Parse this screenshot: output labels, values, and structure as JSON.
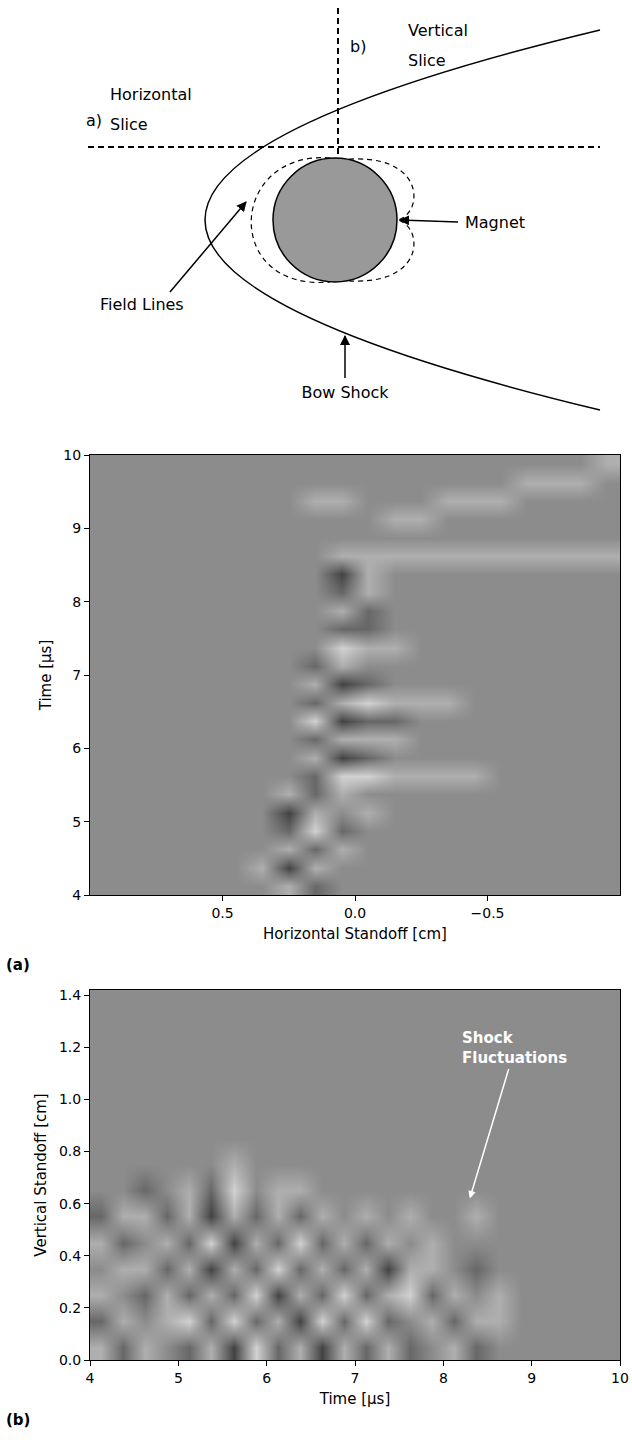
{
  "diagram": {
    "slice_a": "a)",
    "horizontal_slice": "Horizontal Slice",
    "slice_b": "b)",
    "vertical_slice": "Vertical Slice",
    "field_lines": "Field Lines",
    "magnet": "Magnet",
    "bow_shock": "Bow Shock"
  },
  "chart_data": [
    {
      "type": "heatmap",
      "panel_label": "(a)",
      "xlabel": "Horizontal Standoff [cm]",
      "ylabel": "Time [μs]",
      "x": [
        0.95,
        0.85,
        0.75,
        0.65,
        0.55,
        0.45,
        0.35,
        0.25,
        0.15,
        0.05,
        -0.05,
        -0.15,
        -0.25,
        -0.35,
        -0.45,
        -0.55,
        -0.65,
        -0.75,
        -0.85,
        -0.95
      ],
      "y": [
        4.125,
        4.375,
        4.625,
        4.875,
        5.125,
        5.375,
        5.625,
        5.875,
        6.125,
        6.375,
        6.625,
        6.875,
        7.125,
        7.375,
        7.625,
        7.875,
        8.125,
        8.375,
        8.625,
        8.875,
        9.125,
        9.375,
        9.625,
        9.875
      ],
      "cells": [
        [
          0,
          0,
          0,
          0,
          0,
          0,
          0,
          1,
          -1,
          0,
          0,
          0,
          0,
          0,
          0,
          0,
          0,
          0,
          0,
          0
        ],
        [
          0,
          0,
          0,
          0,
          0,
          0,
          1,
          -2,
          1,
          0,
          0,
          0,
          0,
          0,
          0,
          0,
          0,
          0,
          0,
          0
        ],
        [
          0,
          0,
          0,
          0,
          0,
          0,
          0,
          1,
          -1,
          1,
          0,
          0,
          0,
          0,
          0,
          0,
          0,
          0,
          0,
          0
        ],
        [
          0,
          0,
          0,
          0,
          0,
          0,
          0,
          -1,
          2,
          -1,
          0,
          0,
          0,
          0,
          0,
          0,
          0,
          0,
          0,
          0
        ],
        [
          0,
          0,
          0,
          0,
          0,
          0,
          0,
          -2,
          1,
          0,
          1,
          0,
          0,
          0,
          0,
          0,
          0,
          0,
          0,
          0
        ],
        [
          0,
          0,
          0,
          0,
          0,
          0,
          0,
          1,
          -1,
          1,
          0,
          0,
          0,
          0,
          0,
          0,
          0,
          0,
          0,
          0
        ],
        [
          0,
          0,
          0,
          0,
          0,
          0,
          0,
          0,
          -1,
          2,
          2,
          1,
          1,
          1,
          1,
          0,
          0,
          0,
          0,
          0
        ],
        [
          0,
          0,
          0,
          0,
          0,
          0,
          0,
          0,
          1,
          -2,
          -1,
          0,
          0,
          0,
          0,
          0,
          0,
          0,
          0,
          0
        ],
        [
          0,
          0,
          0,
          0,
          0,
          0,
          0,
          0,
          -1,
          1,
          1,
          1,
          0,
          0,
          0,
          0,
          0,
          0,
          0,
          0
        ],
        [
          0,
          0,
          0,
          0,
          0,
          0,
          0,
          0,
          2,
          -2,
          -1,
          -1,
          0,
          0,
          0,
          0,
          0,
          0,
          0,
          0
        ],
        [
          0,
          0,
          0,
          0,
          0,
          0,
          0,
          0,
          -1,
          1,
          2,
          1,
          1,
          1,
          0,
          0,
          0,
          0,
          0,
          0
        ],
        [
          0,
          0,
          0,
          0,
          0,
          0,
          0,
          0,
          1,
          -2,
          -1,
          0,
          0,
          0,
          0,
          0,
          0,
          0,
          0,
          0
        ],
        [
          0,
          0,
          0,
          0,
          0,
          0,
          0,
          0,
          -1,
          1,
          0,
          0,
          0,
          0,
          0,
          0,
          0,
          0,
          0,
          0
        ],
        [
          0,
          0,
          0,
          0,
          0,
          0,
          0,
          0,
          0,
          2,
          1,
          1,
          0,
          0,
          0,
          0,
          0,
          0,
          0,
          0
        ],
        [
          0,
          0,
          0,
          0,
          0,
          0,
          0,
          0,
          0,
          -1,
          -1,
          0,
          0,
          0,
          0,
          0,
          0,
          0,
          0,
          0
        ],
        [
          0,
          0,
          0,
          0,
          0,
          0,
          0,
          0,
          0,
          1,
          -1,
          0,
          0,
          0,
          0,
          0,
          0,
          0,
          0,
          0
        ],
        [
          0,
          0,
          0,
          0,
          0,
          0,
          0,
          0,
          0,
          -1,
          1,
          0,
          0,
          0,
          0,
          0,
          0,
          0,
          0,
          0
        ],
        [
          0,
          0,
          0,
          0,
          0,
          0,
          0,
          0,
          0,
          -2,
          1,
          0,
          0,
          0,
          0,
          0,
          0,
          0,
          0,
          0
        ],
        [
          0,
          0,
          0,
          0,
          0,
          0,
          0,
          0,
          0,
          1,
          1,
          1,
          1,
          1,
          1,
          1,
          1,
          1,
          1,
          1
        ],
        [
          0,
          0,
          0,
          0,
          0,
          0,
          0,
          0,
          0,
          0,
          0,
          0,
          0,
          0,
          0,
          0,
          0,
          0,
          0,
          0
        ],
        [
          0,
          0,
          0,
          0,
          0,
          0,
          0,
          0,
          0,
          0,
          0,
          1,
          1,
          0,
          0,
          0,
          0,
          0,
          0,
          0
        ],
        [
          0,
          0,
          0,
          0,
          0,
          0,
          0,
          0,
          1,
          1,
          0,
          0,
          0,
          1,
          1,
          1,
          0,
          0,
          0,
          0
        ],
        [
          0,
          0,
          0,
          0,
          0,
          0,
          0,
          0,
          0,
          0,
          0,
          0,
          0,
          0,
          0,
          0,
          1,
          1,
          1,
          0
        ],
        [
          0,
          0,
          0,
          0,
          0,
          0,
          0,
          0,
          0,
          0,
          0,
          0,
          0,
          0,
          0,
          0,
          0,
          0,
          0,
          1
        ]
      ],
      "zlim": [
        -3,
        3
      ],
      "xlim": [
        1.0,
        -1.0
      ],
      "xticks": [
        0.5,
        {
          "value": 0,
          "label": "0.0"
        },
        {
          "value": -0.5,
          "label": "−0.5"
        }
      ],
      "ylim": [
        4,
        10
      ],
      "yticks": [
        4,
        5,
        6,
        7,
        8,
        9,
        10
      ],
      "grid": false
    },
    {
      "type": "heatmap",
      "panel_label": "(b)",
      "xlabel": "Time [μs]",
      "ylabel": "Vertical Standoff [cm]",
      "x": [
        4.125,
        4.375,
        4.625,
        4.875,
        5.125,
        5.375,
        5.625,
        5.875,
        6.125,
        6.375,
        6.625,
        6.875,
        7.125,
        7.375,
        7.625,
        7.875,
        8.125,
        8.375,
        8.625,
        8.875,
        9.125,
        9.375,
        9.625,
        9.875
      ],
      "y": [
        0.05,
        0.15,
        0.25,
        0.35,
        0.45,
        0.55,
        0.65,
        0.75,
        0.85,
        0.95,
        1.05,
        1.15,
        1.25,
        1.35
      ],
      "cells": [
        [
          1,
          -1,
          1,
          0,
          -1,
          1,
          -2,
          2,
          -1,
          1,
          -2,
          1,
          -1,
          1,
          -1,
          0,
          1,
          -1,
          0,
          0,
          0,
          0,
          0,
          0
        ],
        [
          -1,
          1,
          0,
          1,
          2,
          -1,
          2,
          -1,
          1,
          -2,
          2,
          -1,
          2,
          -1,
          0,
          1,
          -1,
          1,
          1,
          0,
          0,
          0,
          0,
          0
        ],
        [
          1,
          0,
          -1,
          1,
          -1,
          1,
          -1,
          2,
          -2,
          1,
          -1,
          2,
          -1,
          1,
          2,
          -1,
          1,
          0,
          1,
          0,
          0,
          0,
          0,
          0
        ],
        [
          0,
          1,
          1,
          -1,
          1,
          -2,
          1,
          -1,
          2,
          -1,
          1,
          -1,
          1,
          -2,
          1,
          1,
          0,
          -1,
          0,
          0,
          0,
          0,
          0,
          0
        ],
        [
          1,
          -1,
          0,
          1,
          -1,
          2,
          -2,
          1,
          -1,
          2,
          -1,
          1,
          -1,
          1,
          0,
          1,
          0,
          0,
          0,
          0,
          0,
          0,
          0,
          0
        ],
        [
          -1,
          1,
          1,
          -1,
          1,
          -2,
          1,
          -1,
          1,
          -1,
          1,
          0,
          1,
          0,
          1,
          0,
          0,
          1,
          0,
          0,
          0,
          0,
          0,
          0
        ],
        [
          0,
          0,
          -1,
          0,
          1,
          -1,
          2,
          0,
          1,
          1,
          0,
          0,
          0,
          0,
          0,
          0,
          0,
          0,
          0,
          0,
          0,
          0,
          0,
          0
        ],
        [
          0,
          0,
          0,
          0,
          0,
          0,
          1,
          0,
          0,
          0,
          0,
          0,
          0,
          0,
          0,
          0,
          0,
          0,
          0,
          0,
          0,
          0,
          0,
          0
        ],
        [
          0,
          0,
          0,
          0,
          0,
          0,
          0,
          0,
          0,
          0,
          0,
          0,
          0,
          0,
          0,
          0,
          0,
          0,
          0,
          0,
          0,
          0,
          0,
          0
        ],
        [
          0,
          0,
          0,
          0,
          0,
          0,
          0,
          0,
          0,
          0,
          0,
          0,
          0,
          0,
          0,
          0,
          0,
          0,
          0,
          0,
          0,
          0,
          0,
          0
        ],
        [
          0,
          0,
          0,
          0,
          0,
          0,
          0,
          0,
          0,
          0,
          0,
          0,
          0,
          0,
          0,
          0,
          0,
          0,
          0,
          0,
          0,
          0,
          0,
          0
        ],
        [
          0,
          0,
          0,
          0,
          0,
          0,
          0,
          0,
          0,
          0,
          0,
          0,
          0,
          0,
          0,
          0,
          0,
          0,
          0,
          0,
          0,
          0,
          0,
          0
        ],
        [
          0,
          0,
          0,
          0,
          0,
          0,
          0,
          0,
          0,
          0,
          0,
          0,
          0,
          0,
          0,
          0,
          0,
          0,
          0,
          0,
          0,
          0,
          0,
          0
        ],
        [
          0,
          0,
          0,
          0,
          0,
          0,
          0,
          0,
          0,
          0,
          0,
          0,
          0,
          0,
          0,
          0,
          0,
          0,
          0,
          0,
          0,
          0,
          0,
          0
        ]
      ],
      "zlim": [
        -3,
        3
      ],
      "xlim": [
        4,
        10
      ],
      "xticks": [
        4,
        5,
        6,
        7,
        8,
        9,
        10
      ],
      "ylim": [
        0,
        1.42
      ],
      "yticks": [
        {
          "value": 0,
          "label": "0.0"
        },
        0.2,
        0.4,
        0.6,
        0.8,
        {
          "value": 1,
          "label": "1.0"
        },
        1.2,
        1.4
      ],
      "annotations": [
        {
          "text": "Shock Fluctuations",
          "x": 8.3,
          "y": 0.62
        }
      ],
      "grid": false
    }
  ]
}
